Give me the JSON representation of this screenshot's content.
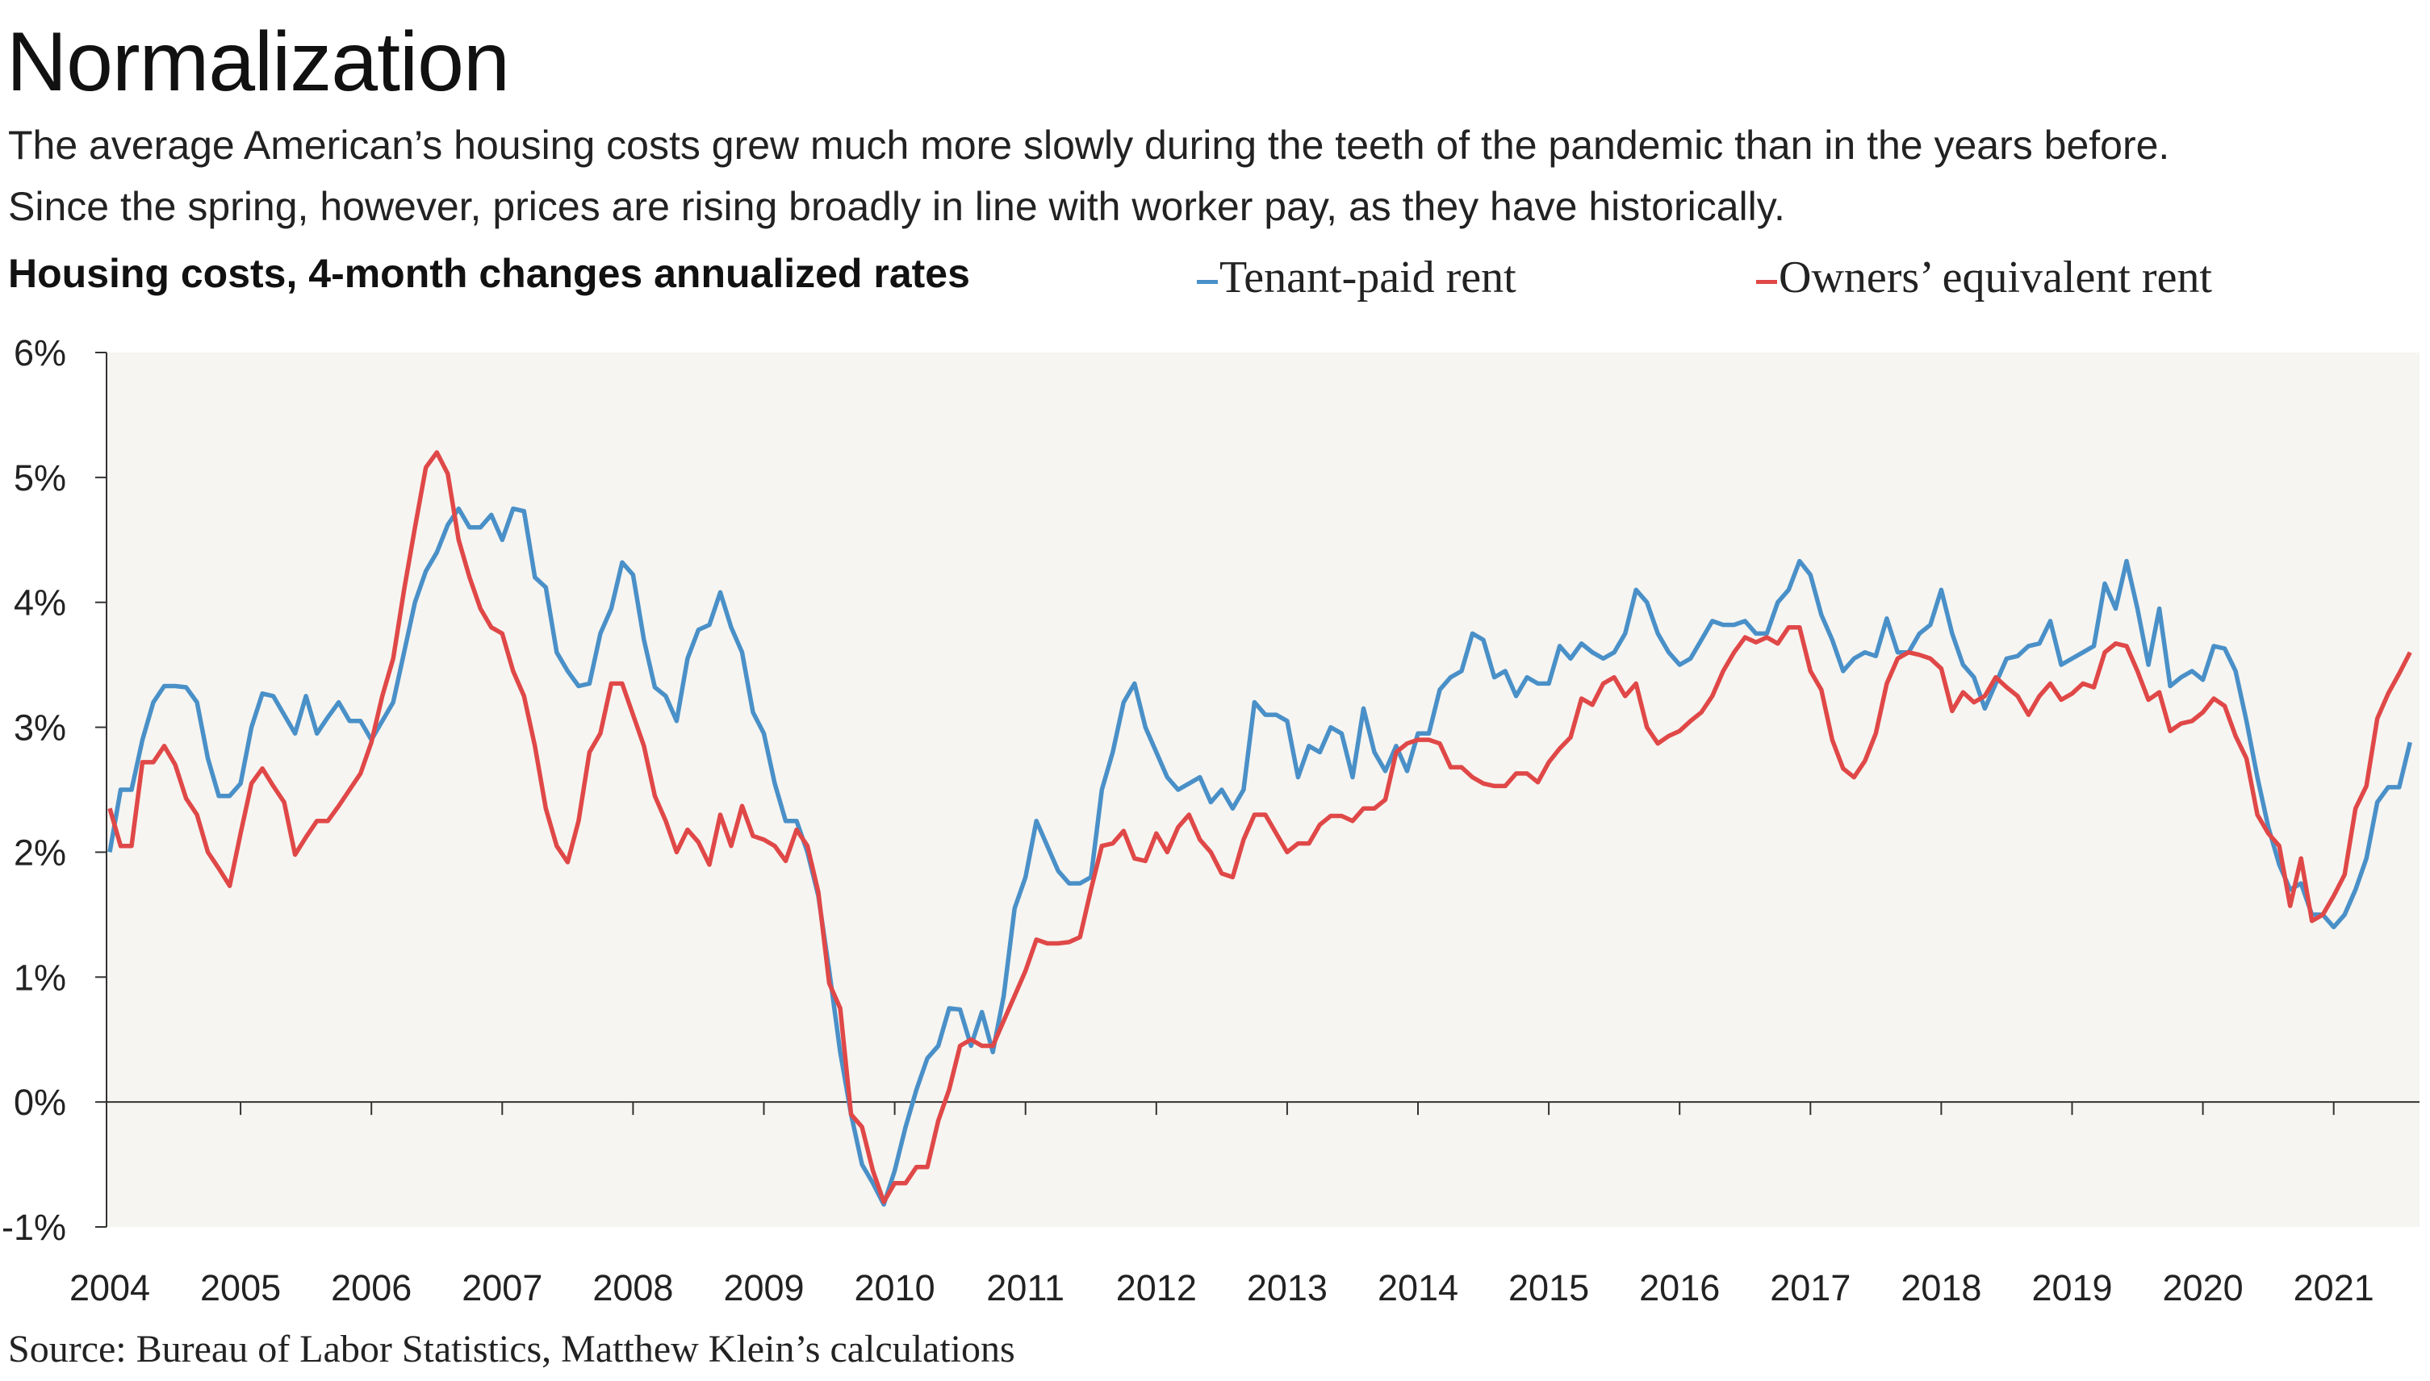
{
  "title": "Normalization",
  "subtitle_lines": [
    "The average American’s housing costs grew much more slowly during the teeth of the pandemic than in the years before.",
    "Since the spring, however, prices are rising broadly in line with worker pay, as they have historically."
  ],
  "source": "Source: Bureau of Labor Statistics, Matthew Klein’s calculations",
  "chart_data": {
    "type": "line",
    "title": "Housing costs, 4-month changes annualized rates",
    "xlabel": "",
    "ylabel": "",
    "ylim": [
      -1,
      6
    ],
    "y_ticks": [
      -1,
      0,
      1,
      2,
      3,
      4,
      5,
      6
    ],
    "y_tick_labels": [
      "-1%",
      "0%",
      "1%",
      "2%",
      "3%",
      "4%",
      "5%",
      "6%"
    ],
    "x_ticks": [
      "2004",
      "2005",
      "2006",
      "2007",
      "2008",
      "2009",
      "2010",
      "2011",
      "2012",
      "2013",
      "2014",
      "2015",
      "2016",
      "2017",
      "2018",
      "2019",
      "2020",
      "2021"
    ],
    "grid": false,
    "legend_placement": "top",
    "background": "#f6f5f1",
    "x_years": [
      2004,
      2005,
      2006,
      2007,
      2008,
      2009,
      2010,
      2011,
      2012,
      2013,
      2014,
      2015,
      2016,
      2017,
      2018,
      2019,
      2020,
      2021
    ],
    "x_months_per_year": [
      "01",
      "02",
      "03",
      "04",
      "05",
      "06",
      "07",
      "08",
      "09",
      "10",
      "11",
      "12"
    ],
    "series": [
      {
        "name": "Tenant-paid rent",
        "color": "#4a90c8",
        "values_by_year": [
          [
            2.0,
            2.5,
            2.5,
            2.9,
            3.2,
            3.33,
            3.33,
            3.32,
            3.2,
            2.75,
            2.45,
            2.45
          ],
          [
            2.55,
            3.0,
            3.27,
            3.25,
            3.1,
            2.95,
            3.25,
            2.95,
            3.08,
            3.2,
            3.05,
            3.05
          ],
          [
            2.9,
            3.05,
            3.2,
            3.6,
            4.0,
            4.25,
            4.4,
            4.62,
            4.75,
            4.6,
            4.6,
            4.7
          ],
          [
            4.5,
            4.75,
            4.73,
            4.2,
            4.12,
            3.6,
            3.45,
            3.33,
            3.35,
            3.75,
            3.95,
            4.32
          ],
          [
            4.22,
            3.7,
            3.32,
            3.25,
            3.05,
            3.55,
            3.78,
            3.82,
            4.08,
            3.8,
            3.6,
            3.12
          ],
          [
            2.95,
            2.55,
            2.25,
            2.25,
            2.0,
            1.65,
            1.05,
            0.4,
            -0.1,
            -0.5,
            -0.65,
            -0.82
          ],
          [
            -0.55,
            -0.2,
            0.1,
            0.35,
            0.45,
            0.75,
            0.74,
            0.45,
            0.72,
            0.4,
            0.85,
            1.55
          ],
          [
            1.8,
            2.25,
            2.05,
            1.85,
            1.75,
            1.75,
            1.8,
            2.5,
            2.8,
            3.2,
            3.35,
            3.0
          ],
          [
            2.8,
            2.6,
            2.5,
            2.55,
            2.6,
            2.4,
            2.5,
            2.35,
            2.5,
            3.2,
            3.1,
            3.1
          ],
          [
            3.05,
            2.6,
            2.85,
            2.8,
            3.0,
            2.95,
            2.6,
            3.15,
            2.8,
            2.65,
            2.85,
            2.65
          ],
          [
            2.95,
            2.95,
            3.3,
            3.4,
            3.45,
            3.75,
            3.7,
            3.4,
            3.45,
            3.25,
            3.4,
            3.35
          ],
          [
            3.35,
            3.65,
            3.55,
            3.67,
            3.6,
            3.55,
            3.6,
            3.75,
            4.1,
            4.0,
            3.75,
            3.6
          ],
          [
            3.5,
            3.55,
            3.7,
            3.85,
            3.82,
            3.82,
            3.85,
            3.75,
            3.75,
            4.0,
            4.1,
            4.33
          ],
          [
            4.22,
            3.9,
            3.7,
            3.45,
            3.55,
            3.6,
            3.57,
            3.87,
            3.6,
            3.6,
            3.75,
            3.82
          ],
          [
            4.1,
            3.75,
            3.5,
            3.4,
            3.15,
            3.35,
            3.55,
            3.57,
            3.65,
            3.67,
            3.85,
            3.5
          ],
          [
            3.55,
            3.6,
            3.65,
            4.15,
            3.95,
            4.33,
            3.95,
            3.5,
            3.95,
            3.33,
            3.4,
            3.45
          ],
          [
            3.38,
            3.65,
            3.63,
            3.45,
            3.05,
            2.6,
            2.2,
            1.9,
            1.7,
            1.75,
            1.5,
            1.5
          ],
          [
            1.4,
            1.5,
            1.7,
            1.95,
            2.4,
            2.52,
            2.52,
            2.88
          ]
        ]
      },
      {
        "name": "Owners’ equivalent rent",
        "color": "#e04848",
        "values_by_year": [
          [
            2.35,
            2.05,
            2.05,
            2.72,
            2.72,
            2.85,
            2.7,
            2.43,
            2.3,
            2.0,
            1.87,
            1.73
          ],
          [
            2.15,
            2.55,
            2.67,
            2.53,
            2.4,
            1.98,
            2.12,
            2.25,
            2.25,
            2.37,
            2.5,
            2.63
          ],
          [
            2.88,
            3.25,
            3.55,
            4.1,
            4.6,
            5.08,
            5.2,
            5.03,
            4.5,
            4.2,
            3.95,
            3.8
          ],
          [
            3.75,
            3.45,
            3.25,
            2.85,
            2.35,
            2.05,
            1.92,
            2.25,
            2.8,
            2.95,
            3.35,
            3.35
          ],
          [
            3.1,
            2.85,
            2.45,
            2.25,
            2.0,
            2.18,
            2.08,
            1.9,
            2.3,
            2.05,
            2.37,
            2.13
          ],
          [
            2.1,
            2.05,
            1.93,
            2.18,
            2.05,
            1.68,
            0.95,
            0.75,
            -0.1,
            -0.2,
            -0.55,
            -0.8
          ],
          [
            -0.65,
            -0.65,
            -0.52,
            -0.52,
            -0.15,
            0.1,
            0.45,
            0.5,
            0.45,
            0.45,
            0.65,
            0.85
          ],
          [
            1.05,
            1.3,
            1.27,
            1.27,
            1.28,
            1.32,
            1.7,
            2.05,
            2.07,
            2.17,
            1.95,
            1.93
          ],
          [
            2.15,
            2.0,
            2.2,
            2.3,
            2.1,
            2.0,
            1.83,
            1.8,
            2.1,
            2.3,
            2.3,
            2.15
          ],
          [
            2.0,
            2.07,
            2.07,
            2.22,
            2.29,
            2.29,
            2.25,
            2.35,
            2.35,
            2.42,
            2.8,
            2.87
          ],
          [
            2.9,
            2.9,
            2.87,
            2.68,
            2.68,
            2.6,
            2.55,
            2.53,
            2.53,
            2.63,
            2.63,
            2.56
          ],
          [
            2.72,
            2.83,
            2.92,
            3.23,
            3.18,
            3.35,
            3.4,
            3.25,
            3.35,
            3.0,
            2.87,
            2.93
          ],
          [
            2.97,
            3.05,
            3.12,
            3.25,
            3.45,
            3.6,
            3.72,
            3.68,
            3.72,
            3.67,
            3.8,
            3.8
          ],
          [
            3.45,
            3.3,
            2.9,
            2.67,
            2.6,
            2.73,
            2.95,
            3.35,
            3.55,
            3.6,
            3.58,
            3.55
          ],
          [
            3.47,
            3.13,
            3.28,
            3.2,
            3.25,
            3.4,
            3.32,
            3.25,
            3.1,
            3.25,
            3.35,
            3.22
          ],
          [
            3.27,
            3.35,
            3.32,
            3.6,
            3.67,
            3.65,
            3.45,
            3.22,
            3.28,
            2.97,
            3.03,
            3.05
          ],
          [
            3.12,
            3.23,
            3.17,
            2.93,
            2.75,
            2.3,
            2.15,
            2.05,
            1.57,
            1.95,
            1.45,
            1.5
          ],
          [
            1.65,
            1.82,
            2.35,
            2.53,
            3.07,
            3.27,
            3.43,
            3.6
          ]
        ]
      }
    ]
  }
}
